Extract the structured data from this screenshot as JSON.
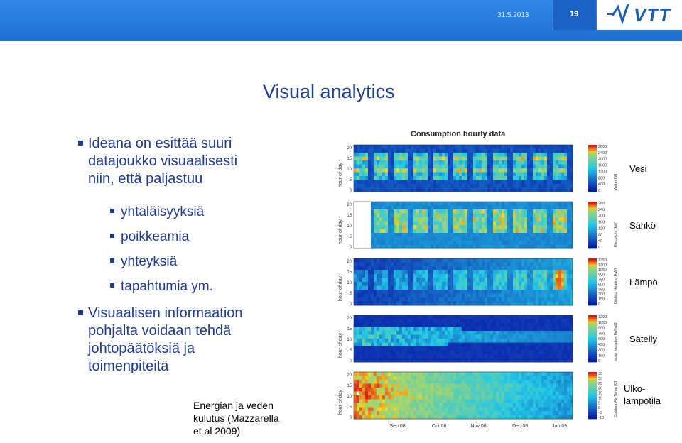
{
  "header": {
    "date": "31.5.2013",
    "slide_number": "19",
    "logo": "VTT"
  },
  "title": "Visual analytics",
  "bullets": [
    {
      "text": "Ideana on esittää suuri datajoukko visuaalisesti niin, että paljastuu",
      "lines": [
        "Ideana on esittää suuri",
        "datajoukko visuaalisesti",
        "niin, että paljastuu"
      ],
      "sub": [
        "yhtäläisyyksiä",
        "poikkeamia",
        "yhteyksiä",
        "tapahtumia ym."
      ]
    },
    {
      "text": "Visuaalisen informaation pohjalta voidaan tehdä johtopäätöksiä ja toimenpiteitä",
      "lines": [
        "Visuaalisen informaation",
        "pohjalta voidaan tehdä",
        "johtopäätöksiä ja",
        "toimenpiteitä"
      ],
      "sub": []
    }
  ],
  "caption": [
    "Energian ja veden",
    "kulutus (Mazzarella",
    "et al 2009)"
  ],
  "chart_data": {
    "type": "heatmap",
    "title": "Consumption hourly data",
    "x_ticks": [
      "Sep 08",
      "Oct 08",
      "Nov 08",
      "Dec 08",
      "Jan 09"
    ],
    "y_label": "hour of day",
    "y_ticks": [
      "20",
      "15",
      "10",
      "5",
      "0"
    ],
    "panels": [
      {
        "label": "Vesi",
        "colorbar_label": "Water [lit]",
        "colorbar_ticks": [
          "2800",
          "2400",
          "2000",
          "1600",
          "1200",
          "800",
          "400",
          "0"
        ],
        "pattern": "weekly-bands"
      },
      {
        "label": "Sähkö",
        "colorbar_label": "Electricity [kW]",
        "colorbar_ticks": [
          "280",
          "240",
          "200",
          "160",
          "120",
          "80",
          "40",
          "0"
        ],
        "pattern": "weekday-blocks"
      },
      {
        "label": "Lämpö",
        "colorbar_label": "District Heating [kW]",
        "colorbar_ticks": [
          "1350",
          "1200",
          "1050",
          "900",
          "750",
          "600",
          "450",
          "300",
          "150",
          "0"
        ],
        "pattern": "rising-winter"
      },
      {
        "label": "Säteily",
        "colorbar_label": "solar radiation [W/m2]",
        "colorbar_ticks": [
          "1200",
          "1050",
          "900",
          "750",
          "600",
          "450",
          "300",
          "150",
          "0"
        ],
        "pattern": "daylight-band"
      },
      {
        "label": "Ulko-\nlämpötila",
        "colorbar_label": "Outdoor Air Temp [C]",
        "colorbar_ticks": [
          "35",
          "30",
          "25",
          "20",
          "15",
          "10",
          "5",
          "0",
          "-5",
          "-10"
        ],
        "pattern": "cooling"
      }
    ],
    "colors": {
      "low": "#0a1aa8",
      "mid": "#22c8e8",
      "high": "#d81818"
    }
  }
}
